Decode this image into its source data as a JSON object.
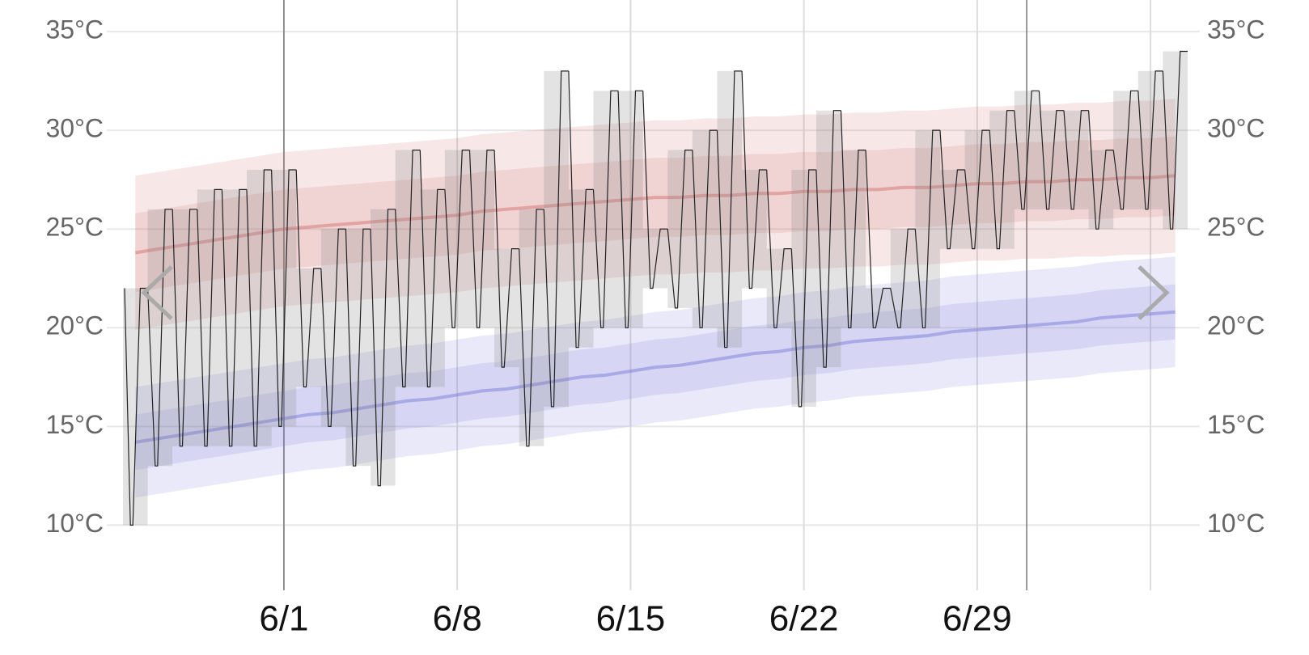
{
  "chart_data": {
    "type": "band",
    "categories": [
      null,
      null,
      null,
      null,
      null,
      null,
      "6/1",
      null,
      null,
      null,
      null,
      null,
      null,
      "6/8",
      null,
      null,
      null,
      null,
      null,
      null,
      "6/15",
      null,
      null,
      null,
      null,
      null,
      null,
      "6/22",
      null,
      null,
      null,
      null,
      null,
      null,
      "6/29",
      null,
      null,
      null,
      null,
      null,
      null,
      null,
      null
    ],
    "ylim": [
      6.7,
      36.6
    ],
    "yticks": [
      {
        "value": 10,
        "label": "10°C"
      },
      {
        "value": 15,
        "label": "15°C"
      },
      {
        "value": 20,
        "label": "20°C"
      },
      {
        "value": 25,
        "label": "25°C"
      },
      {
        "value": 30,
        "label": "30°C"
      },
      {
        "value": 35,
        "label": "35°C"
      }
    ],
    "grid": true,
    "series": [
      {
        "color": "#d06868",
        "values": [
          23.8,
          24.0,
          24.2,
          24.4,
          24.6,
          24.8,
          25.0,
          25.1,
          25.2,
          25.3,
          25.4,
          25.5,
          25.6,
          25.7,
          25.9,
          26.0,
          26.1,
          26.2,
          26.3,
          26.4,
          26.5,
          26.6,
          26.6,
          26.7,
          26.7,
          26.8,
          26.8,
          26.9,
          26.9,
          27.0,
          27.0,
          27.1,
          27.1,
          27.2,
          27.3,
          27.3,
          27.4,
          27.4,
          27.5,
          27.5,
          27.6,
          27.6,
          27.7
        ],
        "outer_high": [
          27.7,
          27.9,
          28.1,
          28.3,
          28.5,
          28.7,
          28.9,
          29.0,
          29.1,
          29.2,
          29.3,
          29.4,
          29.5,
          29.6,
          29.8,
          29.9,
          30.0,
          30.1,
          30.2,
          30.3,
          30.4,
          30.5,
          30.5,
          30.6,
          30.6,
          30.7,
          30.7,
          30.8,
          30.8,
          30.9,
          30.9,
          31.0,
          31.0,
          31.1,
          31.2,
          31.2,
          31.3,
          31.3,
          31.4,
          31.4,
          31.5,
          31.5,
          31.6
        ],
        "outer_low": [
          19.9,
          20.1,
          20.3,
          20.5,
          20.7,
          20.9,
          21.1,
          21.2,
          21.3,
          21.4,
          21.5,
          21.6,
          21.7,
          21.8,
          22.0,
          22.1,
          22.2,
          22.3,
          22.4,
          22.5,
          22.6,
          22.7,
          22.7,
          22.8,
          22.8,
          22.9,
          22.9,
          23.0,
          23.0,
          23.1,
          23.1,
          23.2,
          23.2,
          23.3,
          23.4,
          23.4,
          23.5,
          23.5,
          23.6,
          23.6,
          23.7,
          23.7,
          23.8
        ],
        "inner_high": [
          25.8,
          26.0,
          26.2,
          26.4,
          26.6,
          26.8,
          27.0,
          27.1,
          27.2,
          27.3,
          27.4,
          27.5,
          27.6,
          27.7,
          27.9,
          28.0,
          28.1,
          28.2,
          28.3,
          28.4,
          28.5,
          28.6,
          28.6,
          28.7,
          28.7,
          28.8,
          28.8,
          28.9,
          28.9,
          29.0,
          29.0,
          29.1,
          29.1,
          29.2,
          29.3,
          29.3,
          29.4,
          29.4,
          29.5,
          29.5,
          29.6,
          29.6,
          29.7
        ],
        "inner_low": [
          21.8,
          22.0,
          22.2,
          22.4,
          22.6,
          22.8,
          23.0,
          23.1,
          23.2,
          23.3,
          23.4,
          23.5,
          23.6,
          23.7,
          23.9,
          24.0,
          24.1,
          24.2,
          24.3,
          24.4,
          24.5,
          24.6,
          24.6,
          24.7,
          24.7,
          24.8,
          24.8,
          24.9,
          24.9,
          25.0,
          25.0,
          25.1,
          25.1,
          25.2,
          25.3,
          25.3,
          25.4,
          25.4,
          25.5,
          25.5,
          25.6,
          25.6,
          25.7
        ]
      },
      {
        "color": "#7474d8",
        "values": [
          14.2,
          14.4,
          14.6,
          14.8,
          15.0,
          15.2,
          15.4,
          15.6,
          15.7,
          15.9,
          16.1,
          16.3,
          16.4,
          16.6,
          16.8,
          16.9,
          17.1,
          17.3,
          17.5,
          17.6,
          17.8,
          18.0,
          18.1,
          18.3,
          18.5,
          18.7,
          18.8,
          19.0,
          19.1,
          19.3,
          19.4,
          19.5,
          19.6,
          19.8,
          19.9,
          20.0,
          20.1,
          20.2,
          20.3,
          20.5,
          20.6,
          20.7,
          20.8
        ],
        "outer_high": [
          17.0,
          17.2,
          17.4,
          17.6,
          17.8,
          18.0,
          18.2,
          18.4,
          18.5,
          18.7,
          18.9,
          19.1,
          19.2,
          19.4,
          19.6,
          19.7,
          19.9,
          20.1,
          20.3,
          20.4,
          20.6,
          20.8,
          20.9,
          21.1,
          21.3,
          21.5,
          21.6,
          21.8,
          21.9,
          22.1,
          22.2,
          22.3,
          22.4,
          22.6,
          22.7,
          22.8,
          22.9,
          23.0,
          23.1,
          23.3,
          23.4,
          23.5,
          23.6
        ],
        "outer_low": [
          11.4,
          11.6,
          11.8,
          12.0,
          12.2,
          12.4,
          12.6,
          12.8,
          12.9,
          13.1,
          13.3,
          13.5,
          13.6,
          13.8,
          14.0,
          14.1,
          14.3,
          14.5,
          14.7,
          14.8,
          15.0,
          15.2,
          15.3,
          15.5,
          15.7,
          15.9,
          16.0,
          16.2,
          16.3,
          16.5,
          16.6,
          16.7,
          16.8,
          17.0,
          17.1,
          17.2,
          17.3,
          17.4,
          17.5,
          17.7,
          17.8,
          17.9,
          18.0
        ],
        "inner_high": [
          15.6,
          15.8,
          16.0,
          16.2,
          16.4,
          16.6,
          16.8,
          17.0,
          17.1,
          17.3,
          17.5,
          17.7,
          17.8,
          18.0,
          18.2,
          18.3,
          18.5,
          18.7,
          18.9,
          19.0,
          19.2,
          19.4,
          19.5,
          19.7,
          19.9,
          20.1,
          20.2,
          20.4,
          20.5,
          20.7,
          20.8,
          20.9,
          21.0,
          21.2,
          21.3,
          21.4,
          21.5,
          21.6,
          21.7,
          21.9,
          22.0,
          22.1,
          22.2
        ],
        "inner_low": [
          12.8,
          13.0,
          13.2,
          13.4,
          13.6,
          13.8,
          14.0,
          14.2,
          14.3,
          14.5,
          14.7,
          14.9,
          15.0,
          15.2,
          15.4,
          15.5,
          15.7,
          15.9,
          16.1,
          16.2,
          16.4,
          16.6,
          16.7,
          16.9,
          17.1,
          17.3,
          17.4,
          17.6,
          17.7,
          17.9,
          18.0,
          18.1,
          18.2,
          18.4,
          18.5,
          18.6,
          18.7,
          18.8,
          18.9,
          19.1,
          19.2,
          19.3,
          19.4
        ]
      }
    ],
    "daily": {
      "color": "#222222",
      "highs": [
        22,
        26,
        26,
        27,
        27,
        28,
        28,
        23,
        25,
        25,
        26,
        29,
        27,
        29,
        29,
        24,
        26,
        33,
        27,
        32,
        32,
        25,
        29,
        30,
        33,
        28,
        24,
        28,
        31,
        29,
        22,
        25,
        30,
        28,
        30,
        31,
        32,
        31,
        31,
        29,
        32,
        33,
        34
      ],
      "lows": [
        10,
        13,
        14,
        14,
        14,
        14,
        15,
        17,
        15,
        13,
        12,
        17,
        17,
        20,
        20,
        18,
        14,
        16,
        19,
        20,
        20,
        22,
        21,
        20,
        19,
        22,
        20,
        16,
        18,
        20,
        20,
        20,
        20,
        24,
        24,
        24,
        26,
        26,
        26,
        25,
        26,
        26,
        25
      ]
    }
  }
}
